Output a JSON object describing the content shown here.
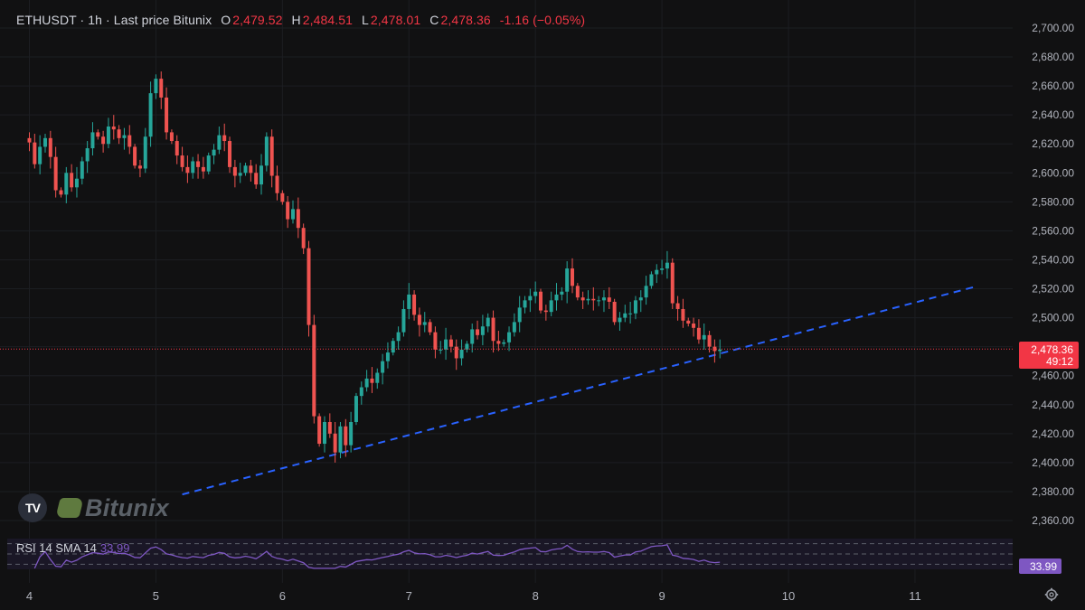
{
  "header": {
    "symbol": "ETHUSDT · 1h · Last price Bitunix",
    "open_label": "O",
    "open": "2,479.52",
    "high_label": "H",
    "high": "2,484.51",
    "low_label": "L",
    "low": "2,478.01",
    "close_label": "C",
    "close": "2,478.36",
    "change": "-1.16 (−0.05%)"
  },
  "rsi": {
    "label": "RSI 14 SMA 14",
    "value": "33.99",
    "badge": "33.99"
  },
  "price_tag": {
    "price": "2,478.36",
    "countdown": "49:12"
  },
  "logo": {
    "tv": "TV",
    "brand": "Bitunix"
  },
  "colors": {
    "up": "#26a69a",
    "down": "#ef5350",
    "trendline": "#2962ff",
    "rsi_line": "#7e57c2",
    "grid": "#1c1e22",
    "price_tag": "#f23645"
  },
  "icons": {
    "settings": "gear-icon"
  },
  "chart_data": {
    "type": "candlestick",
    "interval": "1h",
    "y_axis": {
      "min": 2350,
      "max": 2710,
      "ticks": [
        "2,700.00",
        "2,680.00",
        "2,660.00",
        "2,640.00",
        "2,620.00",
        "2,600.00",
        "2,580.00",
        "2,560.00",
        "2,540.00",
        "2,520.00",
        "2,500.00",
        "2,480.00",
        "2,460.00",
        "2,440.00",
        "2,420.00",
        "2,400.00",
        "2,380.00",
        "2,360.00"
      ],
      "tick_values": [
        2700,
        2680,
        2660,
        2640,
        2620,
        2600,
        2580,
        2560,
        2540,
        2520,
        2500,
        2480,
        2460,
        2440,
        2420,
        2400,
        2380,
        2360
      ]
    },
    "x_axis": {
      "day_labels": [
        "4",
        "5",
        "6",
        "7",
        "8",
        "9",
        "10",
        "11"
      ],
      "day_index": [
        1,
        25,
        49,
        73,
        97,
        121,
        145,
        169
      ]
    },
    "last_price": 2478.36,
    "closes": [
      2621,
      2606,
      2618,
      2624,
      2611,
      2588,
      2585,
      2600,
      2590,
      2596,
      2608,
      2617,
      2628,
      2625,
      2620,
      2632,
      2630,
      2624,
      2626,
      2618,
      2605,
      2603,
      2625,
      2655,
      2665,
      2652,
      2628,
      2622,
      2612,
      2604,
      2600,
      2608,
      2604,
      2601,
      2612,
      2616,
      2626,
      2622,
      2604,
      2598,
      2600,
      2605,
      2600,
      2592,
      2605,
      2625,
      2598,
      2586,
      2580,
      2568,
      2575,
      2562,
      2548,
      2495,
      2432,
      2413,
      2428,
      2420,
      2407,
      2425,
      2412,
      2428,
      2446,
      2452,
      2458,
      2455,
      2462,
      2470,
      2476,
      2484,
      2490,
      2506,
      2516,
      2502,
      2495,
      2497,
      2490,
      2478,
      2478,
      2485,
      2480,
      2472,
      2478,
      2482,
      2492,
      2488,
      2494,
      2500,
      2484,
      2482,
      2483,
      2490,
      2497,
      2507,
      2512,
      2515,
      2518,
      2505,
      2504,
      2512,
      2516,
      2518,
      2534,
      2522,
      2514,
      2512,
      2513,
      2512,
      2512,
      2514,
      2511,
      2497,
      2500,
      2503,
      2503,
      2512,
      2514,
      2522,
      2530,
      2533,
      2534,
      2538,
      2510,
      2506,
      2498,
      2496,
      2493,
      2485,
      2488,
      2480,
      2477,
      2478
    ],
    "trendline": {
      "x": [
        30,
        180
      ],
      "y": [
        2378,
        2521
      ]
    },
    "rsi_levels": [
      70,
      50,
      30
    ],
    "rsi_last": 33.99
  }
}
